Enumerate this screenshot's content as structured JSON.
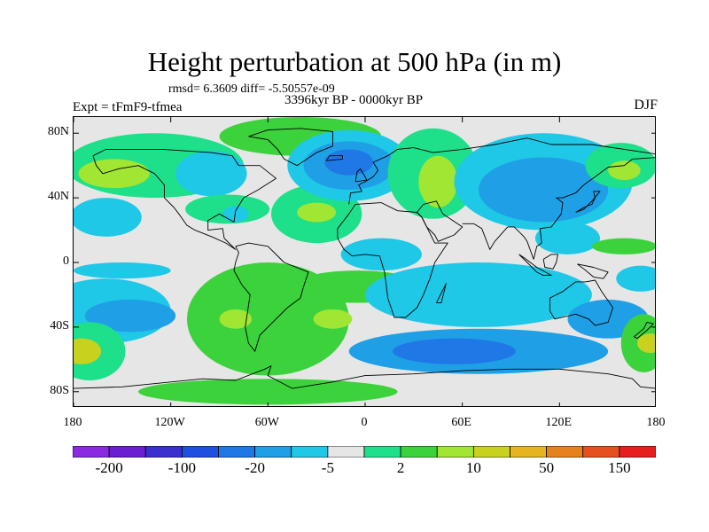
{
  "chart_data": {
    "type": "heatmap",
    "title": "Height perturbation at 500 hPa (in m)",
    "stats_line": "rmsd= 6.3609 diff= -5.50557e-09",
    "period": "3396kyr BP - 0000kyr BP",
    "experiment": "Expt = tFmF9-tfmea",
    "season": "DJF",
    "x_range": [
      -180,
      180
    ],
    "y_range": [
      -90,
      90
    ],
    "y_ticks": [
      {
        "value": 80,
        "label": "80N"
      },
      {
        "value": 40,
        "label": "40N"
      },
      {
        "value": 0,
        "label": "0"
      },
      {
        "value": -40,
        "label": "40S"
      },
      {
        "value": -80,
        "label": "80S"
      }
    ],
    "x_ticks": [
      {
        "value": -180,
        "label": "180"
      },
      {
        "value": -120,
        "label": "120W"
      },
      {
        "value": -60,
        "label": "60W"
      },
      {
        "value": 0,
        "label": "0"
      },
      {
        "value": 60,
        "label": "60E"
      },
      {
        "value": 120,
        "label": "120E"
      },
      {
        "value": 180,
        "label": "180"
      }
    ],
    "colorbar": {
      "colors": [
        "#8a2be2",
        "#6a1fd0",
        "#3c2fd0",
        "#1e4fe0",
        "#1f78e6",
        "#1fa0e6",
        "#1ec8e6",
        "#e6e6e6",
        "#1ee08a",
        "#3cd23c",
        "#a0e632",
        "#c8d21e",
        "#e6b41e",
        "#e6821e",
        "#e6501e",
        "#e61e1e"
      ],
      "labels": [
        {
          "boundary": 1,
          "text": "-200"
        },
        {
          "boundary": 3,
          "text": "-100"
        },
        {
          "boundary": 5,
          "text": "-20"
        },
        {
          "boundary": 7,
          "text": "-5"
        },
        {
          "boundary": 9,
          "text": "2"
        },
        {
          "boundary": 11,
          "text": "10"
        },
        {
          "boundary": 13,
          "text": "50"
        },
        {
          "boundary": 15,
          "text": "150"
        }
      ]
    },
    "regions": [
      {
        "level": 8,
        "lon": -130,
        "lat": 60,
        "rlon": 55,
        "rlat": 20
      },
      {
        "level": 10,
        "lon": -155,
        "lat": 55,
        "rlon": 22,
        "rlat": 9
      },
      {
        "level": 6,
        "lon": -160,
        "lat": 28,
        "rlon": 22,
        "rlat": 12
      },
      {
        "level": 6,
        "lon": -95,
        "lat": 55,
        "rlon": 22,
        "rlat": 14
      },
      {
        "level": 9,
        "lon": -40,
        "lat": 78,
        "rlon": 50,
        "rlat": 12
      },
      {
        "level": 8,
        "lon": -85,
        "lat": 33,
        "rlon": 26,
        "rlat": 9
      },
      {
        "level": 6,
        "lon": -80,
        "lat": 30,
        "rlon": 8,
        "rlat": 5
      },
      {
        "level": 8,
        "lon": -30,
        "lat": 30,
        "rlon": 28,
        "rlat": 18
      },
      {
        "level": 10,
        "lon": -30,
        "lat": 31,
        "rlon": 12,
        "rlat": 6
      },
      {
        "level": 6,
        "lon": -10,
        "lat": 60,
        "rlon": 38,
        "rlat": 22
      },
      {
        "level": 5,
        "lon": -10,
        "lat": 60,
        "rlon": 28,
        "rlat": 15
      },
      {
        "level": 4,
        "lon": -10,
        "lat": 62,
        "rlon": 15,
        "rlat": 8
      },
      {
        "level": 8,
        "lon": 42,
        "lat": 55,
        "rlon": 28,
        "rlat": 28
      },
      {
        "level": 10,
        "lon": 45,
        "lat": 50,
        "rlon": 12,
        "rlat": 16
      },
      {
        "level": 6,
        "lon": 110,
        "lat": 50,
        "rlon": 55,
        "rlat": 30
      },
      {
        "level": 5,
        "lon": 110,
        "lat": 45,
        "rlon": 40,
        "rlat": 20
      },
      {
        "level": 8,
        "lon": 158,
        "lat": 60,
        "rlon": 22,
        "rlat": 14
      },
      {
        "level": 10,
        "lon": 160,
        "lat": 57,
        "rlon": 10,
        "rlat": 6
      },
      {
        "level": 6,
        "lon": -150,
        "lat": -5,
        "rlon": 30,
        "rlat": 5
      },
      {
        "level": 6,
        "lon": -160,
        "lat": -30,
        "rlon": 40,
        "rlat": 20
      },
      {
        "level": 5,
        "lon": -145,
        "lat": -33,
        "rlon": 28,
        "rlat": 10
      },
      {
        "level": 8,
        "lon": -170,
        "lat": -55,
        "rlon": 22,
        "rlat": 18
      },
      {
        "level": 11,
        "lon": -175,
        "lat": -55,
        "rlon": 12,
        "rlat": 8
      },
      {
        "level": 6,
        "lon": -92,
        "lat": -38,
        "rlon": 12,
        "rlat": 8
      },
      {
        "level": 9,
        "lon": -60,
        "lat": -35,
        "rlon": 50,
        "rlat": 35
      },
      {
        "level": 10,
        "lon": -80,
        "lat": -35,
        "rlon": 10,
        "rlat": 6
      },
      {
        "level": 10,
        "lon": -20,
        "lat": -35,
        "rlon": 12,
        "rlat": 6
      },
      {
        "level": 9,
        "lon": -5,
        "lat": -15,
        "rlon": 40,
        "rlat": 10
      },
      {
        "level": 9,
        "lon": -60,
        "lat": -80,
        "rlon": 80,
        "rlat": 8
      },
      {
        "level": 6,
        "lon": 10,
        "lat": 5,
        "rlon": 25,
        "rlat": 10
      },
      {
        "level": 6,
        "lon": 70,
        "lat": -20,
        "rlon": 70,
        "rlat": 20
      },
      {
        "level": 5,
        "lon": 70,
        "lat": -55,
        "rlon": 80,
        "rlat": 14
      },
      {
        "level": 4,
        "lon": 55,
        "lat": -55,
        "rlon": 38,
        "rlat": 8
      },
      {
        "level": 6,
        "lon": 125,
        "lat": 15,
        "rlon": 20,
        "rlat": 10
      },
      {
        "level": 5,
        "lon": 150,
        "lat": -35,
        "rlon": 25,
        "rlat": 12
      },
      {
        "level": 9,
        "lon": 172,
        "lat": -50,
        "rlon": 14,
        "rlat": 18
      },
      {
        "level": 11,
        "lon": 176,
        "lat": -50,
        "rlon": 8,
        "rlat": 6
      },
      {
        "level": 6,
        "lon": 170,
        "lat": -10,
        "rlon": 15,
        "rlat": 8
      },
      {
        "level": 9,
        "lon": 160,
        "lat": 10,
        "rlon": 20,
        "rlat": 5
      }
    ],
    "coastlines": [
      [
        [
          -168,
          66
        ],
        [
          -160,
          70
        ],
        [
          -140,
          70
        ],
        [
          -125,
          70
        ],
        [
          -95,
          68
        ],
        [
          -82,
          66
        ],
        [
          -78,
          60
        ],
        [
          -65,
          60
        ],
        [
          -55,
          52
        ],
        [
          -66,
          45
        ],
        [
          -75,
          40
        ],
        [
          -80,
          32
        ],
        [
          -81,
          25
        ],
        [
          -90,
          30
        ],
        [
          -97,
          26
        ],
        [
          -97,
          20
        ],
        [
          -88,
          21
        ],
        [
          -87,
          15
        ],
        [
          -80,
          8
        ],
        [
          -86,
          12
        ],
        [
          -95,
          16
        ],
        [
          -105,
          20
        ],
        [
          -110,
          23
        ],
        [
          -115,
          30
        ],
        [
          -118,
          34
        ],
        [
          -124,
          40
        ],
        [
          -124,
          48
        ],
        [
          -130,
          55
        ],
        [
          -140,
          60
        ],
        [
          -152,
          58
        ],
        [
          -162,
          55
        ],
        [
          -166,
          60
        ],
        [
          -168,
          66
        ]
      ],
      [
        [
          -72,
          78
        ],
        [
          -60,
          82
        ],
        [
          -40,
          83
        ],
        [
          -20,
          81
        ],
        [
          -20,
          72
        ],
        [
          -30,
          68
        ],
        [
          -42,
          60
        ],
        [
          -50,
          64
        ],
        [
          -54,
          70
        ],
        [
          -60,
          76
        ],
        [
          -72,
          78
        ]
      ],
      [
        [
          -80,
          10
        ],
        [
          -72,
          12
        ],
        [
          -60,
          10
        ],
        [
          -50,
          0
        ],
        [
          -35,
          -6
        ],
        [
          -38,
          -15
        ],
        [
          -40,
          -22
        ],
        [
          -48,
          -28
        ],
        [
          -58,
          -38
        ],
        [
          -65,
          -45
        ],
        [
          -68,
          -55
        ],
        [
          -72,
          -50
        ],
        [
          -74,
          -40
        ],
        [
          -71,
          -20
        ],
        [
          -76,
          -14
        ],
        [
          -81,
          -5
        ],
        [
          -80,
          0
        ],
        [
          -78,
          6
        ],
        [
          -80,
          10
        ]
      ],
      [
        [
          -10,
          36
        ],
        [
          -9,
          43
        ],
        [
          -2,
          44
        ],
        [
          -4,
          48
        ],
        [
          0,
          50
        ],
        [
          5,
          53
        ],
        [
          8,
          57
        ],
        [
          5,
          62
        ],
        [
          14,
          66
        ],
        [
          20,
          70
        ],
        [
          30,
          71
        ],
        [
          42,
          68
        ],
        [
          60,
          70
        ],
        [
          80,
          73
        ],
        [
          100,
          77
        ],
        [
          115,
          73
        ],
        [
          140,
          73
        ],
        [
          160,
          70
        ],
        [
          180,
          67
        ]
      ],
      [
        [
          -17,
          15
        ],
        [
          -17,
          21
        ],
        [
          -10,
          30
        ],
        [
          -6,
          36
        ],
        [
          10,
          37
        ],
        [
          20,
          32
        ],
        [
          32,
          31
        ],
        [
          35,
          28
        ],
        [
          43,
          12
        ],
        [
          51,
          12
        ],
        [
          43,
          0
        ],
        [
          40,
          -10
        ],
        [
          36,
          -20
        ],
        [
          32,
          -28
        ],
        [
          25,
          -34
        ],
        [
          18,
          -34
        ],
        [
          14,
          -22
        ],
        [
          12,
          -6
        ],
        [
          9,
          4
        ],
        [
          0,
          5
        ],
        [
          -8,
          4
        ],
        [
          -13,
          8
        ],
        [
          -17,
          15
        ]
      ],
      [
        [
          32,
          31
        ],
        [
          36,
          36
        ],
        [
          44,
          38
        ],
        [
          48,
          30
        ],
        [
          57,
          24
        ],
        [
          60,
          22
        ],
        [
          55,
          17
        ],
        [
          45,
          13
        ],
        [
          43,
          17
        ],
        [
          38,
          22
        ],
        [
          35,
          28
        ],
        [
          32,
          31
        ]
      ],
      [
        [
          60,
          24
        ],
        [
          67,
          24
        ],
        [
          72,
          21
        ],
        [
          77,
          8
        ],
        [
          80,
          13
        ],
        [
          88,
          22
        ],
        [
          92,
          22
        ],
        [
          98,
          16
        ],
        [
          100,
          13
        ],
        [
          104,
          2
        ],
        [
          106,
          10
        ],
        [
          109,
          12
        ],
        [
          108,
          21
        ],
        [
          115,
          22
        ],
        [
          121,
          30
        ],
        [
          122,
          37
        ],
        [
          118,
          40
        ],
        [
          122,
          40
        ],
        [
          130,
          43
        ],
        [
          135,
          48
        ],
        [
          142,
          53
        ],
        [
          150,
          59
        ],
        [
          160,
          60
        ],
        [
          165,
          64
        ],
        [
          180,
          65
        ]
      ],
      [
        [
          114,
          -22
        ],
        [
          114,
          -30
        ],
        [
          117,
          -35
        ],
        [
          130,
          -32
        ],
        [
          138,
          -35
        ],
        [
          142,
          -39
        ],
        [
          150,
          -37
        ],
        [
          153,
          -28
        ],
        [
          146,
          -18
        ],
        [
          142,
          -11
        ],
        [
          136,
          -12
        ],
        [
          130,
          -12
        ],
        [
          122,
          -18
        ],
        [
          114,
          -22
        ]
      ],
      [
        [
          130,
          31
        ],
        [
          135,
          34
        ],
        [
          140,
          36
        ],
        [
          142,
          40
        ],
        [
          141,
          44
        ],
        [
          145,
          44
        ],
        [
          140,
          38
        ],
        [
          135,
          33
        ],
        [
          130,
          31
        ]
      ],
      [
        [
          95,
          5
        ],
        [
          100,
          0
        ],
        [
          106,
          -6
        ],
        [
          110,
          -8
        ],
        [
          115,
          -8
        ],
        [
          106,
          -3
        ],
        [
          98,
          3
        ],
        [
          95,
          5
        ]
      ],
      [
        [
          110,
          2
        ],
        [
          115,
          5
        ],
        [
          119,
          5
        ],
        [
          118,
          0
        ],
        [
          116,
          -4
        ],
        [
          111,
          -3
        ],
        [
          110,
          2
        ]
      ],
      [
        [
          131,
          -1
        ],
        [
          141,
          -3
        ],
        [
          150,
          -6
        ],
        [
          147,
          -10
        ],
        [
          141,
          -9
        ],
        [
          135,
          -4
        ],
        [
          131,
          -1
        ]
      ],
      [
        [
          -6,
          50
        ],
        [
          -5,
          56
        ],
        [
          -3,
          58
        ],
        [
          0,
          53
        ],
        [
          1,
          51
        ],
        [
          -6,
          50
        ]
      ],
      [
        [
          166,
          -46
        ],
        [
          172,
          -41
        ],
        [
          174,
          -37
        ],
        [
          178,
          -38
        ],
        [
          174,
          -42
        ],
        [
          168,
          -47
        ],
        [
          166,
          -46
        ]
      ],
      [
        [
          -180,
          -78
        ],
        [
          -150,
          -77
        ],
        [
          -120,
          -74
        ],
        [
          -100,
          -72
        ],
        [
          -80,
          -73
        ],
        [
          -62,
          -66
        ],
        [
          -58,
          -64
        ],
        [
          -60,
          -70
        ],
        [
          -45,
          -78
        ],
        [
          -20,
          -74
        ],
        [
          0,
          -70
        ],
        [
          30,
          -69
        ],
        [
          60,
          -67
        ],
        [
          90,
          -66
        ],
        [
          120,
          -66
        ],
        [
          150,
          -69
        ],
        [
          165,
          -72
        ],
        [
          170,
          -77
        ],
        [
          180,
          -78
        ]
      ],
      [
        [
          -24,
          63
        ],
        [
          -14,
          64
        ],
        [
          -14,
          66
        ],
        [
          -22,
          66
        ],
        [
          -24,
          63
        ]
      ],
      [
        [
          44,
          -25
        ],
        [
          49,
          -15
        ],
        [
          50,
          -13
        ],
        [
          47,
          -25
        ],
        [
          44,
          -25
        ]
      ]
    ]
  }
}
